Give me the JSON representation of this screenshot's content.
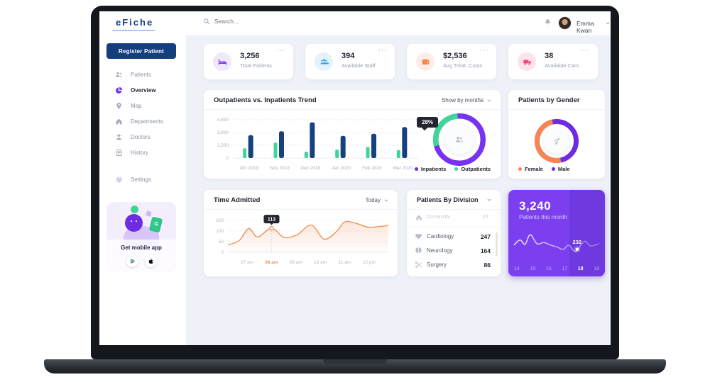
{
  "topbar": {
    "logo": "eFiche",
    "search_placeholder": "Search...",
    "user_name": "Emma Kwan"
  },
  "sidebar": {
    "register_button": "Register Patient",
    "items": [
      {
        "icon": "users",
        "label": "Patients",
        "active": false
      },
      {
        "icon": "pie",
        "label": "Overview",
        "active": true
      },
      {
        "icon": "pin",
        "label": "Map",
        "active": false
      },
      {
        "icon": "home",
        "label": "Departments",
        "active": false
      },
      {
        "icon": "doctor",
        "label": "Doctors",
        "active": false
      },
      {
        "icon": "history",
        "label": "History",
        "active": false
      }
    ],
    "settings": {
      "icon": "gear",
      "label": "Settings"
    },
    "mobile_app": {
      "title": "Get mobile app",
      "stores": [
        "google-play",
        "apple"
      ]
    }
  },
  "stats": [
    {
      "icon": "bed",
      "value": "3,256",
      "label": "Total Patients",
      "color": "#7634f0",
      "bg": "#efe8fd",
      "menu": "···"
    },
    {
      "icon": "staff",
      "value": "394",
      "label": "Available Staff",
      "color": "#3b9fe3",
      "bg": "#e3f2fc",
      "menu": "···"
    },
    {
      "icon": "wallet",
      "value": "$2,536",
      "label": "Avg Treat. Costs",
      "color": "#f0874f",
      "bg": "#fdeee5",
      "menu": "···"
    },
    {
      "icon": "ambulance",
      "value": "38",
      "label": "Available Cars",
      "color": "#f2487e",
      "bg": "#fce3ed",
      "menu": "···"
    }
  ],
  "trend_card": {
    "title": "Outpatients vs. Inpatients Trend",
    "control": "Show by months"
  },
  "gender_card": {
    "title": "Patients by Gender"
  },
  "time_card": {
    "title": "Time Admitted",
    "control": "Today"
  },
  "division_card": {
    "title": "Patients By Division",
    "col_division": "DIVISION",
    "col_pt": "PT.",
    "rows": [
      {
        "icon": "heart",
        "name": "Cardiology",
        "value": "247"
      },
      {
        "icon": "brain",
        "name": "Neurology",
        "value": "164"
      },
      {
        "icon": "scissors",
        "name": "Surgery",
        "value": "86"
      }
    ]
  },
  "month_card": {
    "value": "3,240",
    "label": "Patients this month"
  },
  "chart_data": [
    {
      "id": "trend-bars",
      "type": "bar",
      "title": "Outpatients vs. Inpatients Trend",
      "categories": [
        "Oct 2019",
        "Nov 2019",
        "Dec 2019",
        "Jan 2020",
        "Feb 2020",
        "Mar 2020"
      ],
      "series": [
        {
          "name": "Outpatients",
          "color": "#3dd598",
          "values": [
            1150,
            1800,
            750,
            1000,
            1300,
            950
          ]
        },
        {
          "name": "Inpatients",
          "color": "#16417f",
          "values": [
            2700,
            3150,
            4200,
            2600,
            2850,
            3650
          ]
        }
      ],
      "ylim": [
        0,
        4500
      ],
      "yticks": [
        {
          "v": 0,
          "label": "0"
        },
        {
          "v": 1500,
          "label": "1,500"
        },
        {
          "v": 3000,
          "label": "3,000"
        },
        {
          "v": 4500,
          "label": "4,500"
        }
      ],
      "legend": [
        {
          "label": "Inpatients",
          "color": "#6d2ce0"
        },
        {
          "label": "Outpatients",
          "color": "#3dd598"
        }
      ],
      "grid": "dashed",
      "legend_position": "bottom-right"
    },
    {
      "id": "trend-donut",
      "type": "donut",
      "segments": [
        {
          "name": "Inpatients",
          "value": 72,
          "color": "#7634f0"
        },
        {
          "name": "Outpatients",
          "value": 28,
          "color": "#3dd598"
        }
      ],
      "tooltip": "28%",
      "rotate": 165,
      "center_icon": "users"
    },
    {
      "id": "gender-donut",
      "type": "donut",
      "title": "Patients by Gender",
      "segments": [
        {
          "name": "Male",
          "value": 50,
          "color": "#6d2ce0"
        },
        {
          "name": "Female",
          "value": 50,
          "color": "#f8854f"
        }
      ],
      "rotate": 78,
      "center_icon": "gender",
      "legend": [
        {
          "label": "Female",
          "color": "#f8854f"
        },
        {
          "label": "Male",
          "color": "#6d2ce0"
        }
      ]
    },
    {
      "id": "time-line",
      "type": "line",
      "title": "Time Admitted",
      "color": "#f0915a",
      "x": [
        "07 am",
        "08 am",
        "09 am",
        "10 am",
        "11 am",
        "12 pm"
      ],
      "highlight_x": "08 am",
      "yticks": [
        0,
        50,
        100,
        150
      ],
      "ylim": [
        0,
        160
      ],
      "points": [
        [
          0,
          35
        ],
        [
          0.07,
          55
        ],
        [
          0.13,
          112
        ],
        [
          0.185,
          72
        ],
        [
          0.272,
          113
        ],
        [
          0.35,
          70
        ],
        [
          0.43,
          82
        ],
        [
          0.52,
          128
        ],
        [
          0.6,
          62
        ],
        [
          0.68,
          100
        ],
        [
          0.728,
          143
        ],
        [
          0.8,
          136
        ],
        [
          0.88,
          118
        ],
        [
          1,
          126
        ]
      ],
      "tooltip": {
        "label": "113",
        "x_frac": 0.272,
        "value": 113
      },
      "grid": "dashed"
    },
    {
      "id": "month-line",
      "type": "sparkline",
      "x": [
        "14",
        "15",
        "16",
        "17",
        "18",
        "19"
      ],
      "highlight_x": "18",
      "points": [
        [
          0,
          0.55
        ],
        [
          0.07,
          0.35
        ],
        [
          0.13,
          0.52
        ],
        [
          0.19,
          0.14
        ],
        [
          0.27,
          0.5
        ],
        [
          0.35,
          0.45
        ],
        [
          0.43,
          0.55
        ],
        [
          0.5,
          0.62
        ],
        [
          0.58,
          0.72
        ],
        [
          0.64,
          0.55
        ],
        [
          0.71,
          0.8
        ],
        [
          0.76,
          0.66
        ],
        [
          0.83,
          0.4
        ],
        [
          0.9,
          0.58
        ],
        [
          1,
          0.5
        ]
      ],
      "dot_frac": 0.74,
      "tooltip": "232",
      "color": "#ffffff"
    }
  ],
  "colors": {
    "accent_purple": "#7634f0",
    "navy": "#153e7d",
    "green": "#3dd598",
    "orange": "#f0915a",
    "pink": "#f2487e",
    "page_bg": "#eef1f7"
  }
}
